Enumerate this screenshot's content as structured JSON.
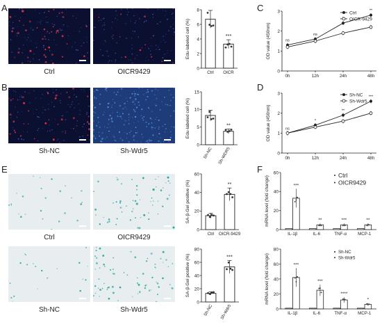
{
  "panels": {
    "A": {
      "letter": "A",
      "images": [
        {
          "label": "Ctrl"
        },
        {
          "label": "OICR9429"
        }
      ],
      "chart": {
        "ylabel": "Edu-labeled cell (%)",
        "ylim": [
          0,
          8
        ],
        "yticks": [
          "0",
          "2",
          "4",
          "6",
          "8"
        ],
        "categories": [
          "Ctrl",
          "OICR"
        ],
        "values": [
          6.7,
          3.3
        ],
        "significance": [
          "",
          "***"
        ]
      }
    },
    "B": {
      "letter": "B",
      "images": [
        {
          "label": "Sh-NC"
        },
        {
          "label": "Sh-Wdr5"
        }
      ],
      "chart": {
        "ylabel": "Edu-labeled cell (%)",
        "ylim": [
          0,
          15
        ],
        "yticks": [
          "0",
          "5",
          "10",
          "15"
        ],
        "categories": [
          "Sh-NC",
          "Sh-WDR5"
        ],
        "values": [
          8.3,
          3.8
        ],
        "significance": [
          "",
          "**"
        ]
      }
    },
    "C": {
      "letter": "C",
      "chart": {
        "ylabel": "OD value (450nm)",
        "ylim": [
          0,
          3
        ],
        "yticks": [
          "0",
          "1",
          "2",
          "3"
        ],
        "x": [
          "0h",
          "12h",
          "24h",
          "48h"
        ],
        "series": [
          {
            "name": "Ctrl",
            "values": [
              1.3,
              1.6,
              2.4,
              2.8
            ]
          },
          {
            "name": "OICR-9429",
            "values": [
              1.2,
              1.5,
              1.9,
              2.2
            ]
          }
        ],
        "significance": [
          "ns",
          "ns",
          "*",
          "**"
        ]
      }
    },
    "D": {
      "letter": "D",
      "chart": {
        "ylabel": "OD value (450nm)",
        "ylim": [
          0,
          3
        ],
        "yticks": [
          "0",
          "1",
          "2",
          "3"
        ],
        "x": [
          "0h",
          "12h",
          "24h",
          "48h"
        ],
        "series": [
          {
            "name": "Sh-NC",
            "values": [
              1.0,
              1.4,
              1.9,
              2.6
            ]
          },
          {
            "name": "Sh-Wdr5",
            "values": [
              1.0,
              1.3,
              1.6,
              2.0
            ]
          }
        ],
        "significance": [
          "ns",
          "*",
          "**",
          "***"
        ]
      }
    },
    "E": {
      "letter": "E",
      "images_top": [
        {
          "label": "Ctrl"
        },
        {
          "label": "OICR9429"
        }
      ],
      "images_bottom": [
        {
          "label": "Sh-NC"
        },
        {
          "label": "Sh-Wdr5"
        }
      ],
      "chart_top": {
        "ylabel": "SA-β-Gel positive (%)",
        "ylim": [
          0,
          60
        ],
        "yticks": [
          "0",
          "20",
          "40",
          "60"
        ],
        "categories": [
          "Ctrl",
          "OICR-9429"
        ],
        "values": [
          15,
          38
        ],
        "significance": [
          "",
          "**"
        ]
      },
      "chart_bottom": {
        "ylabel": "SA-β-Gel positive (%)",
        "ylim": [
          0,
          80
        ],
        "yticks": [
          "0",
          "20",
          "40",
          "60",
          "80"
        ],
        "categories": [
          "Sh-NC",
          "Sh-Wdr5"
        ],
        "values": [
          13,
          53
        ],
        "significance": [
          "",
          "***"
        ]
      }
    },
    "F": {
      "letter": "F",
      "chart_top": {
        "ylabel": "mRNA level (fold change)",
        "ylim": [
          0,
          60
        ],
        "yticks": [
          "0",
          "20",
          "40",
          "60"
        ],
        "categories": [
          "IL-1β",
          "IL-6",
          "TNF-α",
          "MCP-1"
        ],
        "series": [
          {
            "name": "Ctrl",
            "values": [
              1,
              1,
              1,
              1
            ]
          },
          {
            "name": "OICR9429",
            "values": [
              33,
              5,
              5,
              5
            ]
          }
        ],
        "significance": [
          "***",
          "**",
          "***",
          "**"
        ]
      },
      "chart_bottom": {
        "ylabel": "mRNA level (fold change)",
        "ylim": [
          0,
          80
        ],
        "yticks": [
          "0",
          "20",
          "40",
          "60",
          "80"
        ],
        "categories": [
          "IL-1β",
          "IL-6",
          "TNF-α",
          "MCP-1"
        ],
        "series": [
          {
            "name": "Sh-NC",
            "values": [
              1,
              1,
              1,
              1
            ]
          },
          {
            "name": "Sh-Wdr5",
            "values": [
              42,
              25,
              12,
              6
            ]
          }
        ],
        "significance": [
          "***",
          "***",
          "****",
          "*"
        ]
      }
    }
  },
  "colors": {
    "fluor_bg": "#0c1030",
    "fluor_dot": "#e0304a",
    "blue_dense": "#2a4a90",
    "bright_field": "#e8eef0",
    "teal_dot": "#2aa79a",
    "bar_fill": "#ffffff",
    "bar_stroke": "#222222"
  }
}
